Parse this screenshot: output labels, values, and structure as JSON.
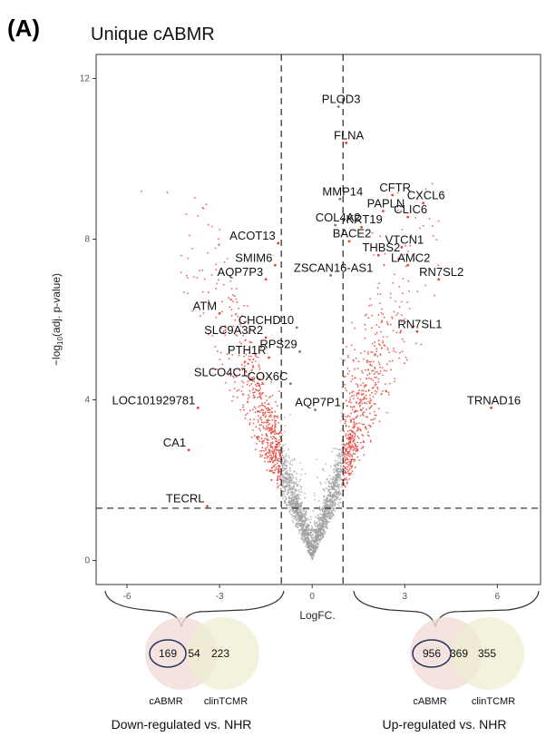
{
  "panel_letter": "(A)",
  "chart_data": {
    "type": "scatter",
    "title": "Unique cABMR",
    "xlabel": "LogFC.",
    "ylabel": "-log10(adj. p-value)",
    "xlim": [
      -7,
      7.4
    ],
    "ylim": [
      -0.6,
      12.6
    ],
    "x_ticks": [
      -6,
      -3,
      0,
      3,
      6
    ],
    "y_ticks": [
      0,
      4,
      8,
      12
    ],
    "thresholds": {
      "logfc": [
        -1,
        1
      ],
      "neglog10p": 1.3
    },
    "grid": false,
    "colors": {
      "significant": "#e8433a",
      "nonsignificant": "#9e9e9e"
    },
    "labeled_genes": [
      {
        "name": "PLOD3",
        "x": 0.85,
        "y": 11.3
      },
      {
        "name": "FLNA",
        "x": 1.1,
        "y": 10.4
      },
      {
        "name": "MMP14",
        "x": 0.9,
        "y": 9.0
      },
      {
        "name": "CFTR",
        "x": 2.6,
        "y": 9.1
      },
      {
        "name": "CXCL6",
        "x": 3.6,
        "y": 8.9
      },
      {
        "name": "PAPLN",
        "x": 2.3,
        "y": 8.7
      },
      {
        "name": "COL4A2",
        "x": 0.75,
        "y": 8.35
      },
      {
        "name": "CLIC6",
        "x": 3.1,
        "y": 8.55
      },
      {
        "name": "KRT19",
        "x": 1.6,
        "y": 8.3
      },
      {
        "name": "ACOT13",
        "x": -1.1,
        "y": 7.9
      },
      {
        "name": "BACE2",
        "x": 1.2,
        "y": 7.95
      },
      {
        "name": "VTCN1",
        "x": 2.9,
        "y": 7.8
      },
      {
        "name": "THBS2",
        "x": 2.15,
        "y": 7.6
      },
      {
        "name": "SMIM6",
        "x": -1.2,
        "y": 7.35
      },
      {
        "name": "LAMC2",
        "x": 3.1,
        "y": 7.35
      },
      {
        "name": "ZSCAN16-AS1",
        "x": 0.6,
        "y": 7.1
      },
      {
        "name": "RN7SL2",
        "x": 4.1,
        "y": 7.0
      },
      {
        "name": "AQP7P3",
        "x": -1.5,
        "y": 7.0
      },
      {
        "name": "ATM",
        "x": -3.0,
        "y": 6.15
      },
      {
        "name": "CHCHD10",
        "x": -0.5,
        "y": 5.8
      },
      {
        "name": "RN7SL1",
        "x": 3.4,
        "y": 5.7
      },
      {
        "name": "SLC9A3R2",
        "x": -1.5,
        "y": 5.55
      },
      {
        "name": "RPS29",
        "x": -0.4,
        "y": 5.2
      },
      {
        "name": "PTH1R",
        "x": -1.4,
        "y": 5.05
      },
      {
        "name": "SLCO4C1",
        "x": -2.0,
        "y": 4.5
      },
      {
        "name": "COX6C",
        "x": -0.7,
        "y": 4.4
      },
      {
        "name": "TRNAD16",
        "x": 5.8,
        "y": 3.8
      },
      {
        "name": "LOC101929781",
        "x": -3.7,
        "y": 3.8
      },
      {
        "name": "AQP7P1",
        "x": 0.1,
        "y": 3.75
      },
      {
        "name": "CA1",
        "x": -4.0,
        "y": 2.75
      },
      {
        "name": "TECRL",
        "x": -3.4,
        "y": 1.35
      }
    ]
  },
  "venn_down": {
    "unique_a": "169",
    "overlap": "54",
    "unique_b": "223",
    "label_a": "cABMR",
    "label_b": "clinTCMR",
    "caption": "Down-regulated vs. NHR",
    "colors": {
      "a": "#f3dcd8",
      "b": "#eeeed2",
      "highlight": "#27355f"
    }
  },
  "venn_up": {
    "unique_a": "956",
    "overlap": "369",
    "unique_b": "355",
    "label_a": "cABMR",
    "label_b": "clinTCMR",
    "caption": "Up-regulated vs. NHR",
    "colors": {
      "a": "#f3dcd8",
      "b": "#eeeed2",
      "highlight": "#27355f"
    }
  }
}
